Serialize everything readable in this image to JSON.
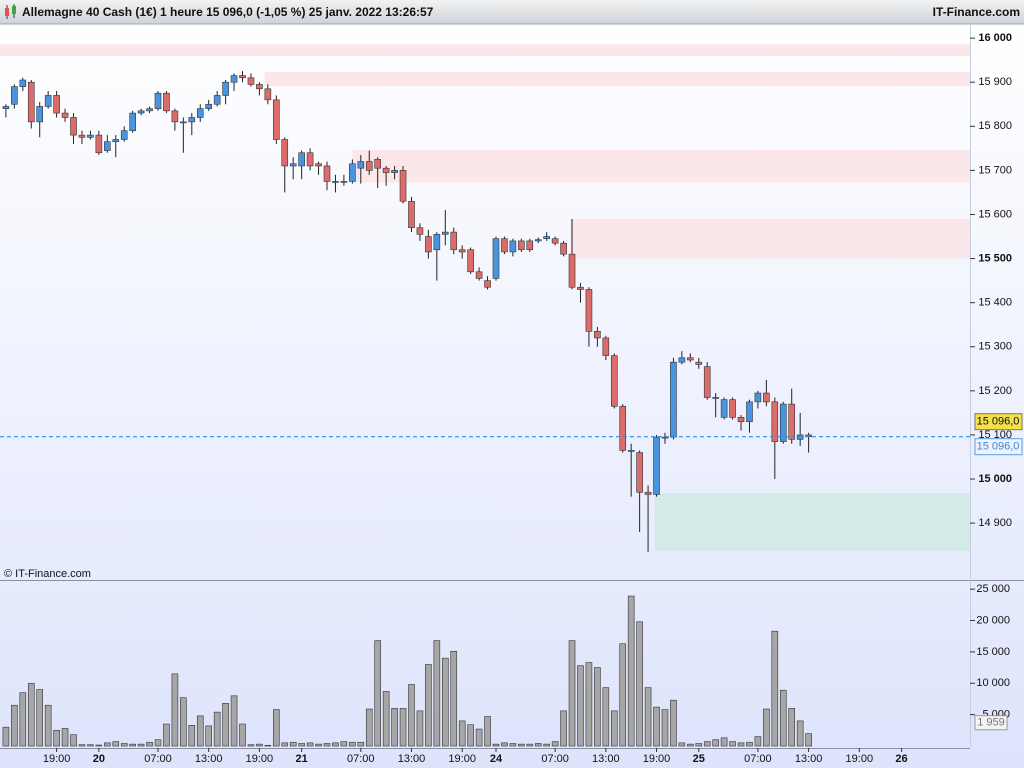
{
  "chart_data": {
    "type": "candlestick",
    "title": "Allemagne 40 Cash (1€) 1 heure 15 096,0 (-1,05 %) 25 janv. 2022 13:26:57",
    "source": "IT-Finance.com",
    "watermark": "© IT-Finance.com",
    "up_color": "#4a93e0",
    "down_color": "#dc6b6b",
    "volume_color": "#a6a6a6",
    "xlim": [
      -0.7,
      114.1
    ],
    "xticks": [
      {
        "value": 6,
        "label": "19:00"
      },
      {
        "value": 11,
        "label": "20"
      },
      {
        "value": 18,
        "label": "07:00"
      },
      {
        "value": 24,
        "label": "13:00"
      },
      {
        "value": 30,
        "label": "19:00"
      },
      {
        "value": 35,
        "label": "21"
      },
      {
        "value": 42,
        "label": "07:00"
      },
      {
        "value": 48,
        "label": "13:00"
      },
      {
        "value": 54,
        "label": "19:00"
      },
      {
        "value": 58,
        "label": "24"
      },
      {
        "value": 65,
        "label": "07:00"
      },
      {
        "value": 71,
        "label": "13:00"
      },
      {
        "value": 77,
        "label": "19:00"
      },
      {
        "value": 82,
        "label": "25"
      },
      {
        "value": 89,
        "label": "07:00"
      },
      {
        "value": 95,
        "label": "13:00"
      },
      {
        "value": 101,
        "label": "19:00"
      },
      {
        "value": 106,
        "label": "26"
      }
    ],
    "ylim": [
      14771,
      16032
    ],
    "yticks": [
      {
        "value": 14900,
        "label": "14 900"
      },
      {
        "value": 15000,
        "label": "15 000"
      },
      {
        "value": 15100,
        "label": "15 100"
      },
      {
        "value": 15200,
        "label": "15 200"
      },
      {
        "value": 15300,
        "label": "15 300"
      },
      {
        "value": 15400,
        "label": "15 400"
      },
      {
        "value": 15500,
        "label": "15 500"
      },
      {
        "value": 15600,
        "label": "15 600"
      },
      {
        "value": 15700,
        "label": "15 700"
      },
      {
        "value": 15800,
        "label": "15 800"
      },
      {
        "value": 15900,
        "label": "15 900"
      },
      {
        "value": 16000,
        "label": "16 000"
      }
    ],
    "last_price": {
      "value": 15096,
      "label": "15 096,0"
    },
    "zones": [
      {
        "low": 15959,
        "high": 15986,
        "start": -0.7,
        "color": "#fbe6ea"
      },
      {
        "low": 15891,
        "high": 15923,
        "start": 30.6,
        "color": "#fbe6ea"
      },
      {
        "low": 15673,
        "high": 15746,
        "start": 41,
        "color": "#fbe6ea"
      },
      {
        "low": 15501,
        "high": 15590,
        "start": 66.8,
        "color": "#fbe6ea"
      },
      {
        "low": 14837,
        "high": 14968,
        "start": 76.8,
        "color": "#d3eae6"
      }
    ],
    "open": [
      15840,
      15850,
      15890,
      15900,
      15810,
      15845,
      15870,
      15830,
      15820,
      15780,
      15775,
      15780,
      15745,
      15765,
      15770,
      15790,
      15830,
      15835,
      15840,
      15875,
      15835,
      15810,
      15810,
      15820,
      15840,
      15850,
      15870,
      15900,
      15915,
      15910,
      15895,
      15885,
      15860,
      15770,
      15710,
      15710,
      15740,
      15715,
      15710,
      15675,
      15675,
      15675,
      15705,
      15720,
      15725,
      15705,
      15695,
      15700,
      15630,
      15570,
      15550,
      15520,
      15555,
      15560,
      15520,
      15520,
      15470,
      15450,
      15455,
      15545,
      15515,
      15540,
      15540,
      15540,
      15545,
      15545,
      15535,
      15510,
      15435,
      15430,
      15335,
      15320,
      15280,
      15165,
      15065,
      15060,
      14970,
      14965,
      15095,
      15095,
      15265,
      15275,
      15265,
      15255,
      15185,
      15140,
      15180,
      15140,
      15130,
      15175,
      15195,
      15175,
      15085,
      15170,
      15090,
      15100
    ],
    "high": [
      15850,
      15895,
      15910,
      15905,
      15855,
      15880,
      15880,
      15840,
      15830,
      15790,
      15790,
      15790,
      15780,
      15780,
      15800,
      15835,
      15840,
      15845,
      15880,
      15880,
      15840,
      15820,
      15830,
      15850,
      15860,
      15880,
      15905,
      15920,
      15925,
      15920,
      15900,
      15895,
      15870,
      15775,
      15730,
      15745,
      15750,
      15720,
      15720,
      15690,
      15690,
      15725,
      15735,
      15745,
      15730,
      15710,
      15710,
      15710,
      15640,
      15580,
      15565,
      15560,
      15610,
      15570,
      15530,
      15525,
      15480,
      15460,
      15550,
      15550,
      15545,
      15545,
      15545,
      15548,
      15560,
      15550,
      15540,
      15590,
      15445,
      15435,
      15345,
      15325,
      15285,
      15170,
      15080,
      15065,
      14985,
      15100,
      15105,
      15275,
      15290,
      15285,
      15275,
      15265,
      15195,
      15185,
      15185,
      15145,
      15180,
      15200,
      15225,
      15185,
      15175,
      15205,
      15150,
      15105
    ],
    "low": [
      15820,
      15840,
      15880,
      15795,
      15775,
      15840,
      15820,
      15810,
      15760,
      15760,
      15770,
      15735,
      15740,
      15730,
      15765,
      15785,
      15825,
      15830,
      15835,
      15830,
      15790,
      15740,
      15780,
      15810,
      15835,
      15845,
      15850,
      15880,
      15900,
      15890,
      15870,
      15850,
      15760,
      15650,
      15680,
      15680,
      15700,
      15690,
      15655,
      15650,
      15665,
      15670,
      15670,
      15690,
      15660,
      15665,
      15680,
      15625,
      15560,
      15540,
      15500,
      15450,
      15530,
      15510,
      15500,
      15465,
      15450,
      15430,
      15450,
      15510,
      15505,
      15515,
      15515,
      15535,
      15540,
      15530,
      15505,
      15430,
      15400,
      15300,
      15300,
      15270,
      15160,
      15060,
      14960,
      14880,
      14835,
      14960,
      15080,
      15090,
      15260,
      15265,
      15250,
      15180,
      15140,
      15135,
      15135,
      15110,
      15105,
      15160,
      15165,
      15000,
      15080,
      15080,
      15075,
      15060
    ],
    "close": [
      15845,
      15890,
      15905,
      15810,
      15845,
      15870,
      15830,
      15820,
      15780,
      15775,
      15780,
      15740,
      15765,
      15770,
      15790,
      15830,
      15835,
      15840,
      15875,
      15835,
      15810,
      15810,
      15820,
      15840,
      15850,
      15870,
      15900,
      15915,
      15910,
      15895,
      15885,
      15860,
      15770,
      15710,
      15715,
      15740,
      15710,
      15710,
      15675,
      15675,
      15675,
      15715,
      15720,
      15700,
      15705,
      15695,
      15700,
      15630,
      15570,
      15555,
      15515,
      15555,
      15560,
      15520,
      15515,
      15470,
      15455,
      15435,
      15545,
      15515,
      15540,
      15520,
      15520,
      15543,
      15550,
      15535,
      15510,
      15435,
      15430,
      15335,
      15320,
      15280,
      15165,
      15065,
      15065,
      14970,
      14965,
      15095,
      15095,
      15265,
      15275,
      15270,
      15260,
      15185,
      15185,
      15180,
      15140,
      15130,
      15175,
      15195,
      15175,
      15085,
      15170,
      15090,
      15100,
      15096
    ],
    "volume": [
      3000,
      6500,
      8500,
      10000,
      9000,
      6500,
      2500,
      2800,
      1800,
      200,
      200,
      150,
      500,
      700,
      400,
      300,
      300,
      600,
      1000,
      3500,
      11500,
      7700,
      3300,
      4800,
      3200,
      5400,
      6800,
      8000,
      3500,
      200,
      300,
      100,
      5800,
      500,
      600,
      400,
      500,
      300,
      400,
      500,
      700,
      600,
      600,
      5900,
      16800,
      8700,
      6000,
      6000,
      9800,
      5600,
      13000,
      16800,
      14000,
      15100,
      4000,
      3400,
      2700,
      4700,
      300,
      500,
      400,
      300,
      300,
      400,
      300,
      700,
      5600,
      16800,
      12800,
      13300,
      12500,
      9300,
      5600,
      16300,
      23900,
      19800,
      9300,
      6200,
      5800,
      7300,
      500,
      300,
      400,
      700,
      1000,
      1300,
      700,
      500,
      600,
      1500,
      5900,
      18300,
      8900,
      6000,
      4000,
      1959
    ],
    "volume_ylim": [
      0,
      26300
    ],
    "volume_yticks": [
      {
        "value": 5000,
        "label": "5 000"
      },
      {
        "value": 10000,
        "label": "10 000"
      },
      {
        "value": 15000,
        "label": "15 000"
      },
      {
        "value": 20000,
        "label": "20 000"
      },
      {
        "value": 25000,
        "label": "25 000"
      }
    ],
    "last_volume": {
      "value": 1959,
      "label": "1 959"
    }
  }
}
